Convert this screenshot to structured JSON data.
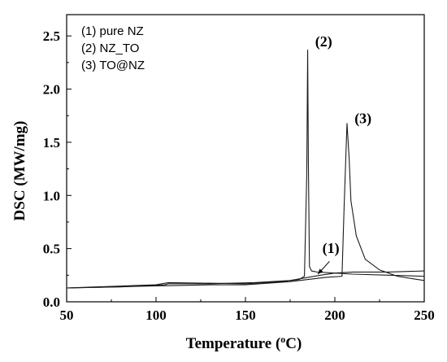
{
  "chart_data": {
    "type": "line",
    "xlabel": "Temperature (",
    "xlabel_sup": "o",
    "xlabel_end": "C)",
    "ylabel": "DSC (MW/mg)",
    "xlim": [
      50,
      250
    ],
    "ylim": [
      0.0,
      2.7
    ],
    "x_ticks": [
      50,
      100,
      150,
      200,
      250
    ],
    "y_ticks": [
      0.0,
      0.5,
      1.0,
      1.5,
      2.0,
      2.5
    ],
    "x_tick_labels": [
      "50",
      "100",
      "150",
      "200",
      "250"
    ],
    "y_tick_labels": [
      "0.0",
      "0.5",
      "1.0",
      "1.5",
      "2.0",
      "2.5"
    ],
    "grid": false,
    "legend_position": "top-left",
    "legend": [
      "(1) pure NZ",
      "(2) NZ_TO",
      "(3) TO@NZ"
    ],
    "series": [
      {
        "name": "(1) pure NZ",
        "x": [
          50,
          80,
          105,
          107,
          130,
          155,
          175,
          185,
          192,
          200,
          210,
          230,
          250
        ],
        "y": [
          0.13,
          0.14,
          0.16,
          0.17,
          0.17,
          0.18,
          0.2,
          0.23,
          0.25,
          0.27,
          0.28,
          0.28,
          0.29
        ]
      },
      {
        "name": "(2) NZ_TO",
        "x": [
          50,
          100,
          107,
          150,
          170,
          180,
          183,
          184.3,
          184.8,
          185.2,
          185.8,
          187,
          190,
          200,
          210,
          230,
          250
        ],
        "y": [
          0.13,
          0.16,
          0.18,
          0.17,
          0.19,
          0.21,
          0.24,
          1.2,
          2.37,
          1.3,
          0.33,
          0.29,
          0.28,
          0.27,
          0.26,
          0.25,
          0.24
        ]
      },
      {
        "name": "(3) TO@NZ",
        "x": [
          50,
          100,
          130,
          150,
          175,
          195,
          204,
          205.2,
          206.8,
          208,
          209,
          212,
          217,
          225,
          235,
          250
        ],
        "y": [
          0.13,
          0.15,
          0.16,
          0.16,
          0.19,
          0.23,
          0.24,
          0.9,
          1.68,
          1.35,
          0.95,
          0.62,
          0.4,
          0.3,
          0.24,
          0.2
        ]
      }
    ],
    "annotations": [
      {
        "text": "(2)",
        "x": 189,
        "y": 2.4
      },
      {
        "text": "(3)",
        "x": 211,
        "y": 1.68
      },
      {
        "text": "(1)",
        "x": 193,
        "y": 0.46
      }
    ]
  }
}
